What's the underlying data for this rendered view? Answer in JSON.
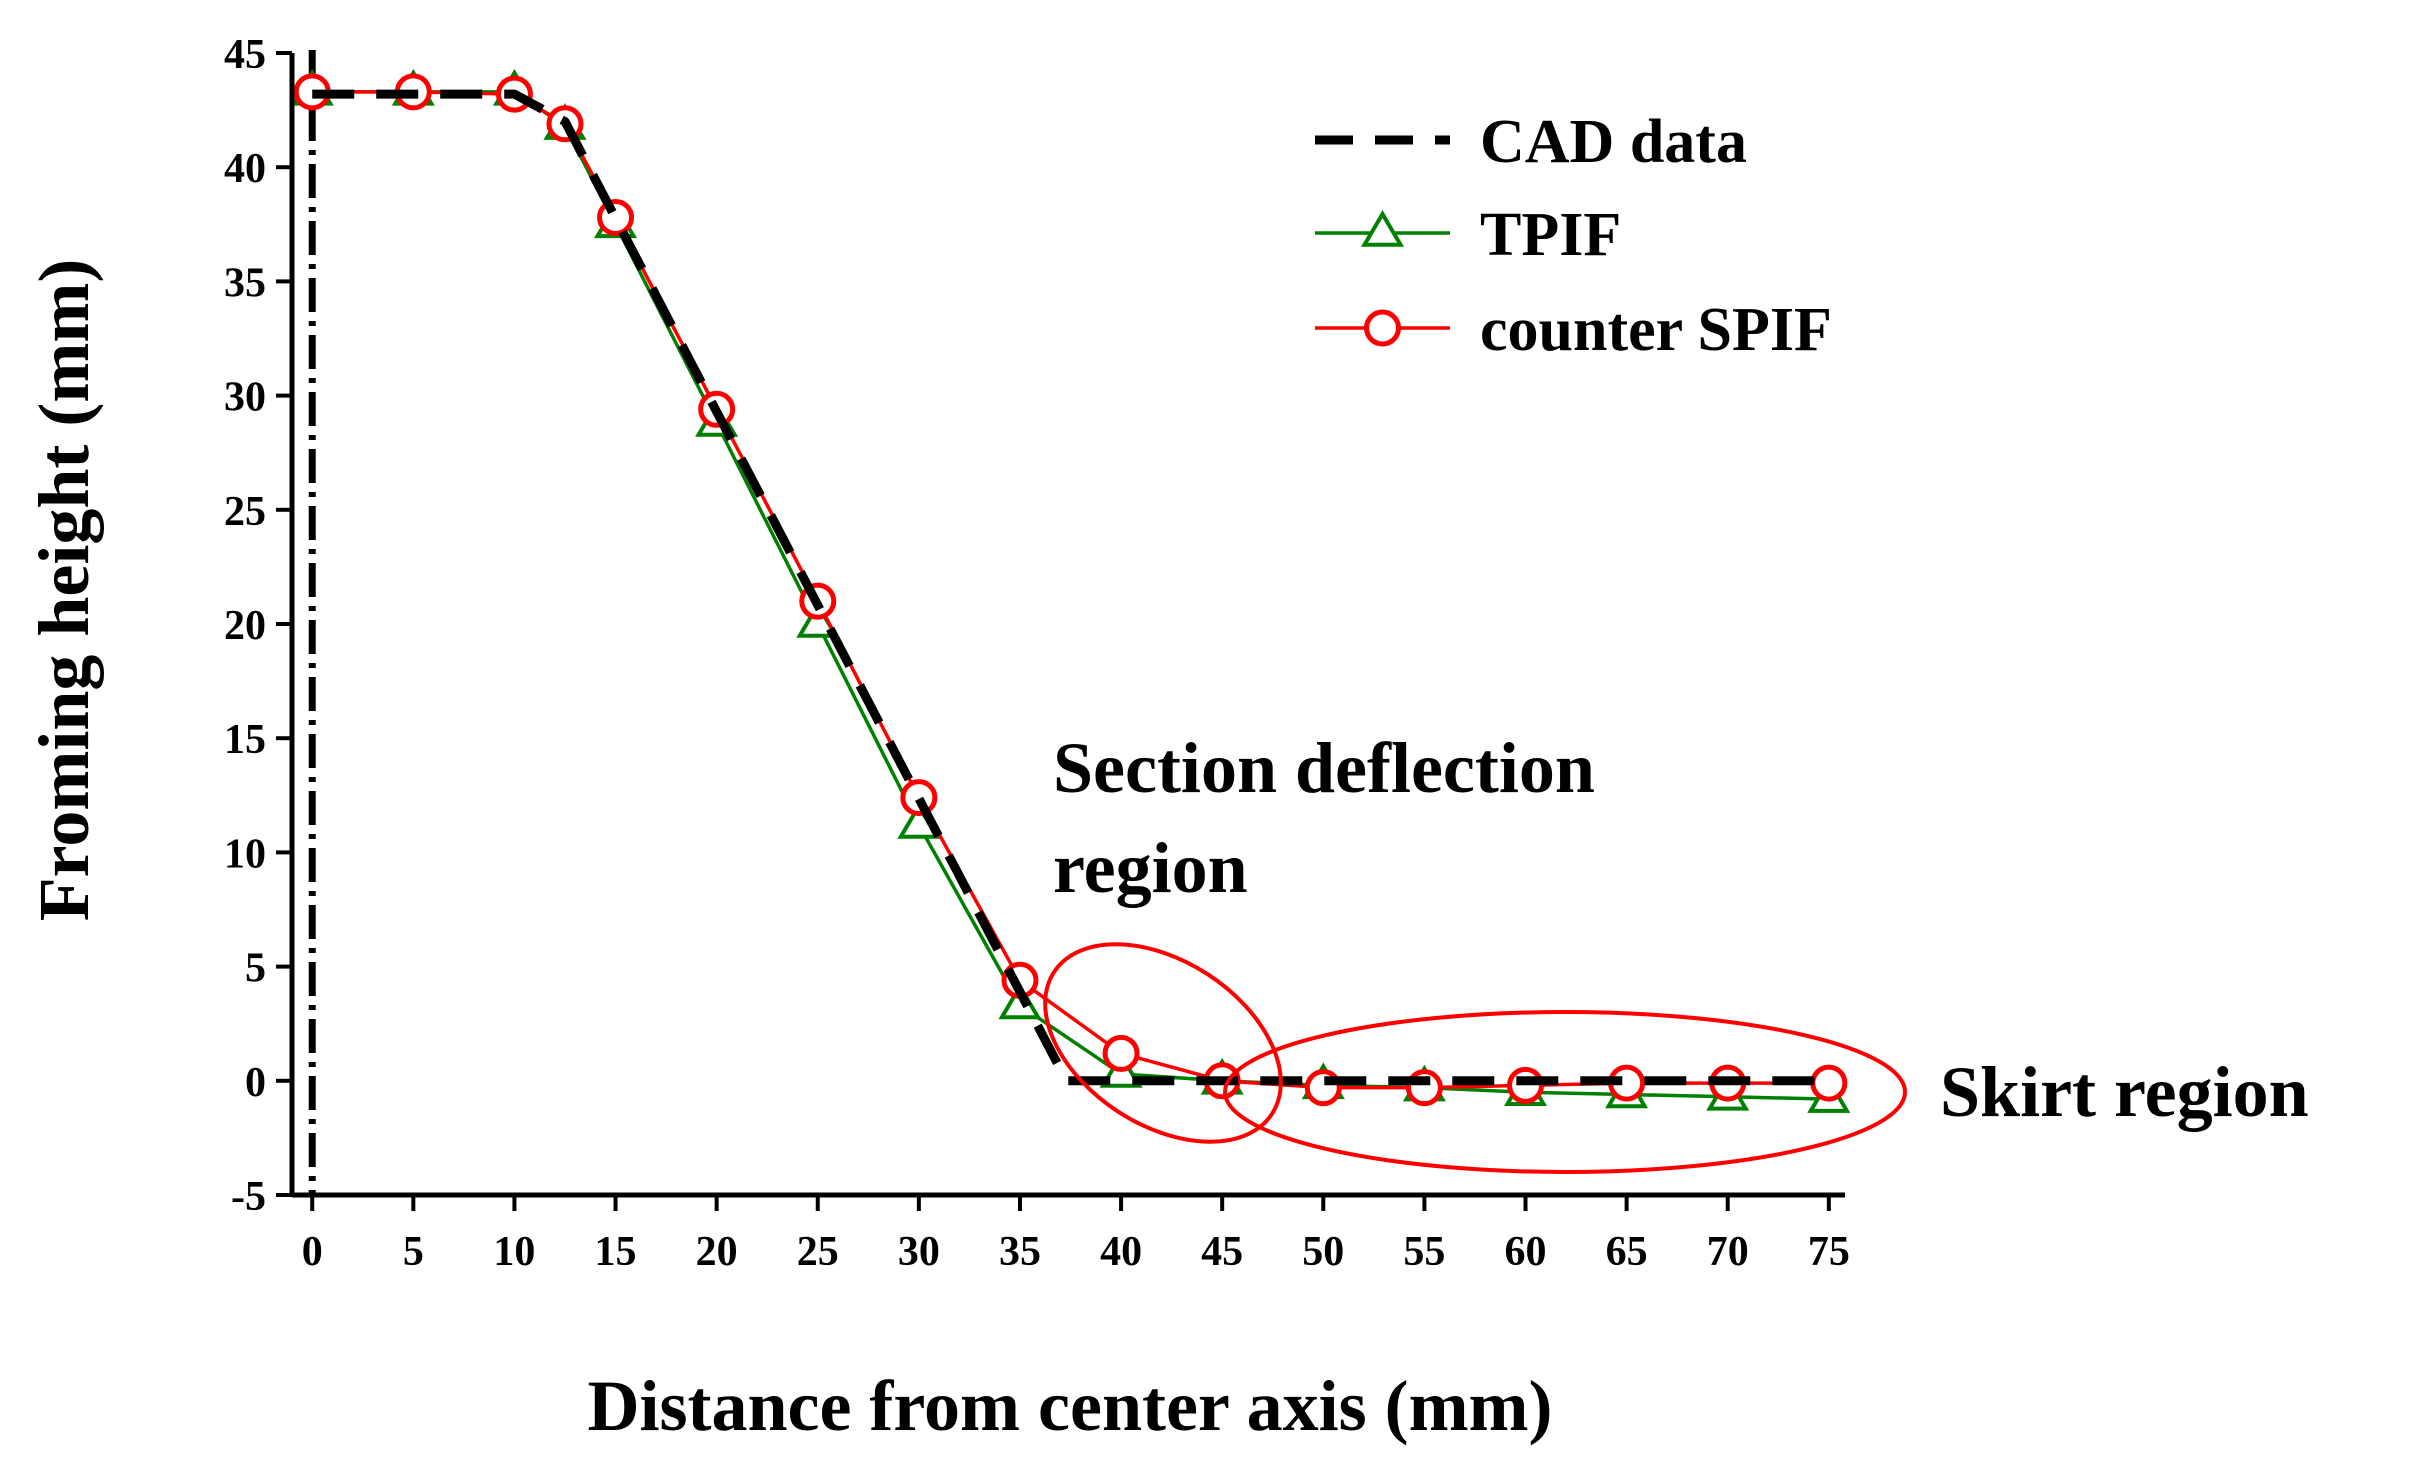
{
  "chart_data": {
    "type": "line",
    "title": "",
    "xlabel": "Distance from center axis (mm)",
    "ylabel": "Froming height (mm)",
    "xlim": [
      -1,
      75.8
    ],
    "ylim": [
      -5,
      45
    ],
    "x_ticks": [
      0,
      5,
      10,
      15,
      20,
      25,
      30,
      35,
      40,
      45,
      50,
      55,
      60,
      65,
      70,
      75
    ],
    "x_tick_labels": [
      "0",
      "5",
      "10",
      "15",
      "20",
      "25",
      "30",
      "35",
      "40",
      "45",
      "50",
      "55",
      "60",
      "65",
      "70",
      "75"
    ],
    "y_ticks": [
      -5,
      0,
      5,
      10,
      15,
      20,
      25,
      30,
      35,
      40,
      45
    ],
    "y_tick_labels": [
      "-5",
      "0",
      "5",
      "10",
      "15",
      "20",
      "25",
      "30",
      "35",
      "40",
      "45"
    ],
    "center_axis_x": 0,
    "legend_position": "top-right",
    "series": [
      {
        "name": "CAD data",
        "style": "dashed",
        "marker": "none",
        "color": "#000000",
        "x": [
          0,
          10,
          12.5,
          37.3,
          45,
          75
        ],
        "y": [
          43.2,
          43.2,
          42.0,
          0.0,
          0.0,
          0.0
        ]
      },
      {
        "name": "TPIF",
        "style": "solid",
        "marker": "triangle",
        "color": "#008000",
        "x": [
          0,
          5,
          10,
          12.5,
          15,
          20,
          25,
          30,
          35,
          40,
          45,
          50,
          55,
          60,
          65,
          70,
          75
        ],
        "y": [
          43.3,
          43.3,
          43.3,
          41.8,
          37.5,
          28.8,
          20.0,
          11.2,
          3.3,
          0.3,
          0.0,
          -0.2,
          -0.3,
          -0.5,
          -0.6,
          -0.7,
          -0.8
        ]
      },
      {
        "name": "counter SPIF",
        "style": "solid",
        "marker": "circle",
        "color": "#ff0000",
        "x": [
          0,
          5,
          10,
          12.5,
          15,
          20,
          25,
          30,
          35,
          40,
          45,
          50,
          55,
          60,
          65,
          70,
          75
        ],
        "y": [
          43.3,
          43.3,
          43.2,
          41.9,
          37.8,
          29.4,
          21.0,
          12.4,
          4.4,
          1.2,
          0.0,
          -0.3,
          -0.3,
          -0.2,
          -0.1,
          -0.1,
          -0.1
        ]
      }
    ],
    "annotations": [
      {
        "lines": [
          "Section deflection",
          "region"
        ]
      },
      {
        "lines": [
          "Skirt region"
        ]
      }
    ]
  }
}
